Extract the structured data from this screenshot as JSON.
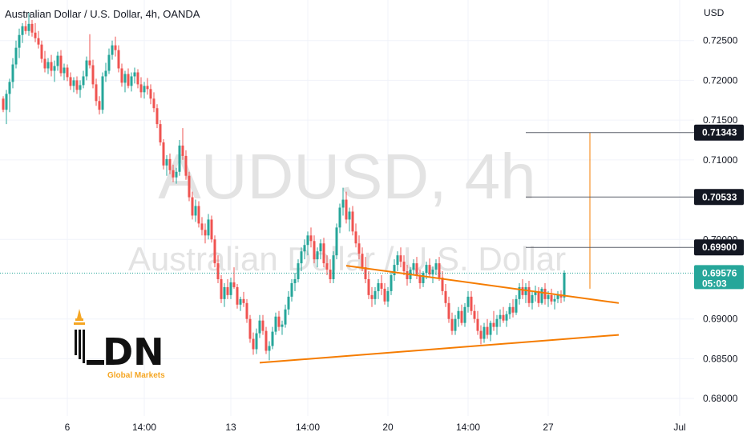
{
  "chart_data": {
    "type": "candlestick",
    "title": "Australian Dollar / U.S. Dollar, 4h, OANDA",
    "watermark": {
      "symbol": "AUDUSD, 4h",
      "name": "Australian Dollar / U.S. Dollar"
    },
    "currency": "USD",
    "y_ticks": [
      "0.72500",
      "0.72000",
      "0.71500",
      "0.71000",
      "0.70000",
      "0.69000",
      "0.68500",
      "0.68000"
    ],
    "ylim": [
      0.6778,
      0.7301
    ],
    "x_ticks": [
      "6",
      "14:00",
      "13",
      "14:00",
      "20",
      "14:00",
      "27",
      "Jul"
    ],
    "levels": [
      {
        "value": 0.71343,
        "label": "0.71343"
      },
      {
        "value": 0.70533,
        "label": "0.70533"
      },
      {
        "value": 0.699,
        "label": "0.69900"
      }
    ],
    "last_price": {
      "value": 0.69576,
      "label": "0.69576",
      "countdown": "05:03"
    },
    "colors": {
      "up": "#26a69a",
      "down": "#ef5350",
      "trendline": "#f57c00",
      "level": "#5d606b",
      "last": "#26a69a"
    },
    "trendlines": [
      {
        "from": {
          "bar": 107,
          "price": 0.6967
        },
        "to": {
          "bar": 192,
          "price": 0.692
        }
      },
      {
        "from": {
          "bar": 80,
          "price": 0.6845
        },
        "to": {
          "bar": 192,
          "price": 0.688
        }
      }
    ],
    "measure_line": {
      "bar": 183,
      "from": 0.6938,
      "to": 0.71343
    },
    "ohlc": [
      [
        0.7177,
        0.718,
        0.716,
        0.7163
      ],
      [
        0.7163,
        0.7188,
        0.7145,
        0.7183
      ],
      [
        0.7183,
        0.7202,
        0.716,
        0.7198
      ],
      [
        0.7198,
        0.7228,
        0.719,
        0.722
      ],
      [
        0.722,
        0.725,
        0.7215,
        0.7241
      ],
      [
        0.7241,
        0.7265,
        0.7228,
        0.7257
      ],
      [
        0.7257,
        0.7272,
        0.7247,
        0.7268
      ],
      [
        0.7268,
        0.7275,
        0.7258,
        0.7262
      ],
      [
        0.7262,
        0.7285,
        0.7256,
        0.7271
      ],
      [
        0.7271,
        0.7276,
        0.7255,
        0.726
      ],
      [
        0.726,
        0.7272,
        0.7248,
        0.7253
      ],
      [
        0.7253,
        0.7262,
        0.724,
        0.7245
      ],
      [
        0.7245,
        0.725,
        0.7222,
        0.7227
      ],
      [
        0.7227,
        0.7237,
        0.721,
        0.7215
      ],
      [
        0.7215,
        0.7228,
        0.7208,
        0.7223
      ],
      [
        0.7223,
        0.7232,
        0.7205,
        0.7212
      ],
      [
        0.7212,
        0.7225,
        0.7198,
        0.7218
      ],
      [
        0.7218,
        0.7236,
        0.7212,
        0.7231
      ],
      [
        0.7231,
        0.7238,
        0.7205,
        0.7209
      ],
      [
        0.7209,
        0.7221,
        0.72,
        0.7216
      ],
      [
        0.7216,
        0.722,
        0.7199,
        0.7204
      ],
      [
        0.7204,
        0.721,
        0.7188,
        0.7193
      ],
      [
        0.7193,
        0.7204,
        0.7185,
        0.72
      ],
      [
        0.72,
        0.7205,
        0.7183,
        0.7188
      ],
      [
        0.7188,
        0.72,
        0.7178,
        0.7194
      ],
      [
        0.7194,
        0.7212,
        0.719,
        0.7205
      ],
      [
        0.7205,
        0.723,
        0.72,
        0.7225
      ],
      [
        0.7225,
        0.7258,
        0.7215,
        0.7219
      ],
      [
        0.7219,
        0.7226,
        0.719,
        0.7195
      ],
      [
        0.7195,
        0.7202,
        0.7168,
        0.7174
      ],
      [
        0.7174,
        0.718,
        0.7157,
        0.7163
      ],
      [
        0.7163,
        0.721,
        0.7158,
        0.7205
      ],
      [
        0.7205,
        0.7222,
        0.7198,
        0.7212
      ],
      [
        0.7212,
        0.724,
        0.7208,
        0.7232
      ],
      [
        0.7232,
        0.725,
        0.7226,
        0.7244
      ],
      [
        0.7244,
        0.7255,
        0.723,
        0.7238
      ],
      [
        0.7238,
        0.7244,
        0.721,
        0.7215
      ],
      [
        0.7215,
        0.7221,
        0.7192,
        0.7197
      ],
      [
        0.7197,
        0.7212,
        0.7185,
        0.7208
      ],
      [
        0.7208,
        0.7215,
        0.719,
        0.7193
      ],
      [
        0.7193,
        0.721,
        0.7186,
        0.7205
      ],
      [
        0.7205,
        0.7216,
        0.7196,
        0.721
      ],
      [
        0.721,
        0.7214,
        0.719,
        0.7195
      ],
      [
        0.7195,
        0.7204,
        0.7178,
        0.7185
      ],
      [
        0.7185,
        0.7198,
        0.7177,
        0.7193
      ],
      [
        0.7193,
        0.7203,
        0.7182,
        0.7189
      ],
      [
        0.7189,
        0.7195,
        0.717,
        0.7177
      ],
      [
        0.7177,
        0.7185,
        0.716,
        0.7165
      ],
      [
        0.7165,
        0.717,
        0.714,
        0.7145
      ],
      [
        0.7145,
        0.715,
        0.7118,
        0.7122
      ],
      [
        0.7122,
        0.7126,
        0.7088,
        0.7093
      ],
      [
        0.7093,
        0.7106,
        0.708,
        0.7101
      ],
      [
        0.7101,
        0.7108,
        0.7082,
        0.7087
      ],
      [
        0.7087,
        0.7094,
        0.7072,
        0.7078
      ],
      [
        0.7078,
        0.709,
        0.707,
        0.7085
      ],
      [
        0.7085,
        0.7125,
        0.708,
        0.7118
      ],
      [
        0.7118,
        0.714,
        0.71,
        0.7105
      ],
      [
        0.7105,
        0.7112,
        0.7075,
        0.708
      ],
      [
        0.708,
        0.7085,
        0.7048,
        0.7053
      ],
      [
        0.7053,
        0.706,
        0.7025,
        0.703
      ],
      [
        0.703,
        0.705,
        0.7022,
        0.7042
      ],
      [
        0.7042,
        0.7048,
        0.7015,
        0.702
      ],
      [
        0.702,
        0.7028,
        0.7005,
        0.7012
      ],
      [
        0.7012,
        0.702,
        0.6995,
        0.7005
      ],
      [
        0.7005,
        0.7032,
        0.7,
        0.7025
      ],
      [
        0.7025,
        0.703,
        0.6996,
        0.7
      ],
      [
        0.7,
        0.7005,
        0.6965,
        0.697
      ],
      [
        0.697,
        0.698,
        0.6945,
        0.695
      ],
      [
        0.695,
        0.6955,
        0.692,
        0.6925
      ],
      [
        0.6925,
        0.6945,
        0.6915,
        0.694
      ],
      [
        0.694,
        0.695,
        0.6925,
        0.693
      ],
      [
        0.693,
        0.6952,
        0.6925,
        0.6946
      ],
      [
        0.6946,
        0.6965,
        0.6938,
        0.694
      ],
      [
        0.694,
        0.6944,
        0.6913,
        0.6918
      ],
      [
        0.6918,
        0.6928,
        0.691,
        0.6925
      ],
      [
        0.6925,
        0.6934,
        0.6915,
        0.692
      ],
      [
        0.692,
        0.6925,
        0.6895,
        0.69
      ],
      [
        0.69,
        0.6905,
        0.687,
        0.6875
      ],
      [
        0.6875,
        0.6883,
        0.6855,
        0.6862
      ],
      [
        0.6862,
        0.6888,
        0.6856,
        0.6882
      ],
      [
        0.6882,
        0.6905,
        0.6876,
        0.6898
      ],
      [
        0.6898,
        0.6905,
        0.688,
        0.6885
      ],
      [
        0.6885,
        0.689,
        0.6856,
        0.686
      ],
      [
        0.686,
        0.6872,
        0.6848,
        0.6866
      ],
      [
        0.6866,
        0.689,
        0.6862,
        0.6884
      ],
      [
        0.6884,
        0.6908,
        0.688,
        0.6903
      ],
      [
        0.6903,
        0.691,
        0.6885,
        0.689
      ],
      [
        0.689,
        0.6898,
        0.688,
        0.6893
      ],
      [
        0.6893,
        0.6918,
        0.6889,
        0.6912
      ],
      [
        0.6912,
        0.6935,
        0.6905,
        0.6928
      ],
      [
        0.6928,
        0.695,
        0.6922,
        0.6945
      ],
      [
        0.6945,
        0.6958,
        0.6935,
        0.695
      ],
      [
        0.695,
        0.6975,
        0.6946,
        0.697
      ],
      [
        0.697,
        0.699,
        0.696,
        0.6985
      ],
      [
        0.6985,
        0.7,
        0.6975,
        0.6993
      ],
      [
        0.6993,
        0.701,
        0.698,
        0.7005
      ],
      [
        0.7005,
        0.7015,
        0.699,
        0.6998
      ],
      [
        0.6998,
        0.7005,
        0.697,
        0.6975
      ],
      [
        0.6975,
        0.699,
        0.6965,
        0.6985
      ],
      [
        0.6985,
        0.7,
        0.6975,
        0.6995
      ],
      [
        0.6995,
        0.7002,
        0.6965,
        0.697
      ],
      [
        0.697,
        0.698,
        0.6955,
        0.6962
      ],
      [
        0.6962,
        0.6975,
        0.6945,
        0.695
      ],
      [
        0.695,
        0.6985,
        0.6945,
        0.698
      ],
      [
        0.698,
        0.702,
        0.6975,
        0.7015
      ],
      [
        0.7015,
        0.7045,
        0.7008,
        0.704
      ],
      [
        0.704,
        0.7065,
        0.703,
        0.705
      ],
      [
        0.705,
        0.706,
        0.702,
        0.7025
      ],
      [
        0.7025,
        0.704,
        0.701,
        0.7035
      ],
      [
        0.7035,
        0.7042,
        0.7005,
        0.701
      ],
      [
        0.701,
        0.702,
        0.699,
        0.6995
      ],
      [
        0.6995,
        0.7005,
        0.6975,
        0.6982
      ],
      [
        0.6982,
        0.699,
        0.696,
        0.6965
      ],
      [
        0.6965,
        0.6978,
        0.6945,
        0.695
      ],
      [
        0.695,
        0.696,
        0.6925,
        0.693
      ],
      [
        0.693,
        0.694,
        0.6915,
        0.6925
      ],
      [
        0.6925,
        0.694,
        0.6918,
        0.6935
      ],
      [
        0.6935,
        0.695,
        0.6925,
        0.6945
      ],
      [
        0.6945,
        0.6955,
        0.693,
        0.6938
      ],
      [
        0.6938,
        0.6945,
        0.6918,
        0.6922
      ],
      [
        0.6922,
        0.694,
        0.6915,
        0.6935
      ],
      [
        0.6935,
        0.696,
        0.693,
        0.6955
      ],
      [
        0.6955,
        0.6975,
        0.6948,
        0.6968
      ],
      [
        0.6968,
        0.6985,
        0.696,
        0.698
      ],
      [
        0.698,
        0.699,
        0.6965,
        0.6972
      ],
      [
        0.6972,
        0.698,
        0.6955,
        0.696
      ],
      [
        0.696,
        0.6968,
        0.6942,
        0.695
      ],
      [
        0.695,
        0.6965,
        0.6945,
        0.6962
      ],
      [
        0.6962,
        0.6975,
        0.6955,
        0.697
      ],
      [
        0.697,
        0.6978,
        0.695,
        0.6955
      ],
      [
        0.6955,
        0.6962,
        0.6938,
        0.6945
      ],
      [
        0.6945,
        0.696,
        0.694,
        0.6958
      ],
      [
        0.6958,
        0.6972,
        0.695,
        0.6968
      ],
      [
        0.6968,
        0.6976,
        0.6952,
        0.6956
      ],
      [
        0.6956,
        0.6966,
        0.6945,
        0.6962
      ],
      [
        0.6962,
        0.6975,
        0.6955,
        0.697
      ],
      [
        0.697,
        0.6978,
        0.6948,
        0.6952
      ],
      [
        0.6952,
        0.696,
        0.693,
        0.6935
      ],
      [
        0.6935,
        0.6944,
        0.6915,
        0.692
      ],
      [
        0.692,
        0.6928,
        0.6895,
        0.69
      ],
      [
        0.69,
        0.6908,
        0.688,
        0.6885
      ],
      [
        0.6885,
        0.6905,
        0.688,
        0.69
      ],
      [
        0.69,
        0.6915,
        0.689,
        0.691
      ],
      [
        0.691,
        0.6918,
        0.6892,
        0.6895
      ],
      [
        0.6895,
        0.692,
        0.689,
        0.6915
      ],
      [
        0.6915,
        0.6935,
        0.6908,
        0.6928
      ],
      [
        0.6928,
        0.6935,
        0.6905,
        0.691
      ],
      [
        0.691,
        0.6918,
        0.6895,
        0.69
      ],
      [
        0.69,
        0.691,
        0.688,
        0.6885
      ],
      [
        0.6885,
        0.6892,
        0.6868,
        0.6875
      ],
      [
        0.6875,
        0.6895,
        0.687,
        0.689
      ],
      [
        0.689,
        0.69,
        0.6875,
        0.688
      ],
      [
        0.688,
        0.6898,
        0.6872,
        0.6895
      ],
      [
        0.6895,
        0.691,
        0.6885,
        0.689
      ],
      [
        0.689,
        0.6905,
        0.688,
        0.69
      ],
      [
        0.69,
        0.6912,
        0.689,
        0.6905
      ],
      [
        0.6905,
        0.6915,
        0.6895,
        0.6898
      ],
      [
        0.6898,
        0.691,
        0.689,
        0.6906
      ],
      [
        0.6906,
        0.692,
        0.69,
        0.6915
      ],
      [
        0.6915,
        0.6925,
        0.6902,
        0.6908
      ],
      [
        0.6908,
        0.693,
        0.6905,
        0.6925
      ],
      [
        0.6925,
        0.6945,
        0.6918,
        0.694
      ],
      [
        0.694,
        0.695,
        0.6925,
        0.693
      ],
      [
        0.693,
        0.6945,
        0.692,
        0.694
      ],
      [
        0.694,
        0.6948,
        0.6915,
        0.692
      ],
      [
        0.692,
        0.6935,
        0.6912,
        0.693
      ],
      [
        0.693,
        0.6942,
        0.6922,
        0.6935
      ],
      [
        0.6935,
        0.694,
        0.6915,
        0.692
      ],
      [
        0.692,
        0.694,
        0.6918,
        0.6938
      ],
      [
        0.6938,
        0.6945,
        0.6918,
        0.6925
      ],
      [
        0.6925,
        0.6935,
        0.6915,
        0.693
      ],
      [
        0.693,
        0.6938,
        0.6918,
        0.6922
      ],
      [
        0.6922,
        0.693,
        0.6912,
        0.6925
      ],
      [
        0.6925,
        0.6935,
        0.692,
        0.693
      ],
      [
        0.693,
        0.6936,
        0.692,
        0.6927
      ],
      [
        0.6927,
        0.6961,
        0.6922,
        0.6958
      ]
    ]
  },
  "logo": {
    "letters": "DN",
    "tagline": "Global Markets"
  }
}
